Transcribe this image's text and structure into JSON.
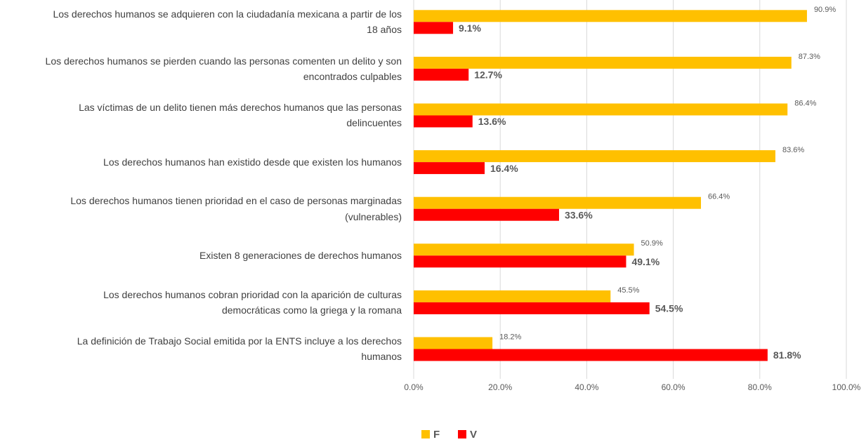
{
  "chart_data": {
    "type": "barh",
    "categories": [
      "Los derechos humanos se adquieren con la ciudadanía mexicana a partir de los 18 años",
      "Los derechos humanos se pierden cuando las personas comenten un delito y son encontrados culpables",
      "Las víctimas de un delito tienen más derechos humanos que las personas delincuentes",
      "Los derechos humanos han existido desde que existen los humanos",
      "Los derechos humanos tienen prioridad en el caso de personas marginadas (vulnerables)",
      "Existen 8 generaciones de derechos humanos",
      "Los derechos humanos cobran prioridad con la aparición de culturas democráticas como la griega y la romana",
      "La definición de Trabajo Social emitida por la ENTS incluye a los derechos humanos"
    ],
    "series": [
      {
        "name": "F",
        "color": "#ffc000",
        "values": [
          90.9,
          87.3,
          86.4,
          83.6,
          66.4,
          50.9,
          45.5,
          18.2
        ],
        "value_labels": [
          "90.9%",
          "87.3%",
          "86.4%",
          "83.6%",
          "66.4%",
          "50.9%",
          "45.5%",
          "18.2%"
        ]
      },
      {
        "name": "V",
        "color": "#ff0000",
        "values": [
          9.1,
          12.7,
          13.6,
          16.4,
          33.6,
          49.1,
          54.5,
          81.8
        ],
        "value_labels": [
          "9.1%",
          "12.7%",
          "13.6%",
          "16.4%",
          "33.6%",
          "49.1%",
          "54.5%",
          "81.8%"
        ]
      }
    ],
    "xlim": [
      0,
      100
    ],
    "xticks": [
      {
        "value": 0,
        "label": "0.0%"
      },
      {
        "value": 20,
        "label": "20.0%"
      },
      {
        "value": 40,
        "label": "40.0%"
      },
      {
        "value": 60,
        "label": "60.0%"
      },
      {
        "value": 80,
        "label": "80.0%"
      },
      {
        "value": 100,
        "label": "100.0%"
      }
    ],
    "grid": true,
    "legend": "bottom"
  }
}
